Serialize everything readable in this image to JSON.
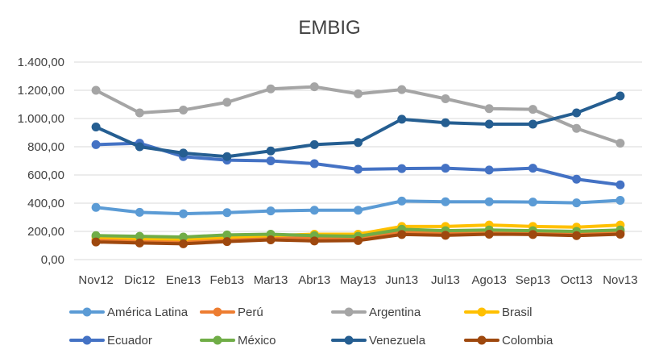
{
  "chart_data": {
    "type": "line",
    "title": "EMBIG",
    "xlabel": "",
    "ylabel": "",
    "ylim": [
      0,
      1400
    ],
    "yticks": [
      0,
      200,
      400,
      600,
      800,
      1000,
      1200,
      1400
    ],
    "ytick_labels": [
      "0,00",
      "200,00",
      "400,00",
      "600,00",
      "800,00",
      "1.000,00",
      "1.200,00",
      "1.400,00"
    ],
    "grid": true,
    "legend_position": "bottom",
    "categories": [
      "Nov12",
      "Dic12",
      "Ene13",
      "Feb13",
      "Mar13",
      "Abr13",
      "May13",
      "Jun13",
      "Jul13",
      "Ago13",
      "Sep13",
      "Oct13",
      "Nov13"
    ],
    "series": [
      {
        "name": "América Latina",
        "color": "#5b9bd5",
        "values": [
          370,
          335,
          325,
          333,
          345,
          350,
          350,
          415,
          410,
          410,
          408,
          402,
          420
        ]
      },
      {
        "name": "Perú",
        "color": "#ed7d31",
        "values": [
          140,
          130,
          125,
          140,
          150,
          155,
          150,
          200,
          190,
          200,
          190,
          185,
          195
        ]
      },
      {
        "name": "Argentina",
        "color": "#a5a5a5",
        "values": [
          1200,
          1040,
          1060,
          1115,
          1210,
          1225,
          1175,
          1205,
          1140,
          1070,
          1065,
          930,
          825
        ]
      },
      {
        "name": "Brasil",
        "color": "#ffc000",
        "values": [
          160,
          150,
          145,
          160,
          170,
          180,
          180,
          235,
          235,
          245,
          235,
          230,
          245
        ]
      },
      {
        "name": "Ecuador",
        "color": "#4472c4",
        "values": [
          815,
          825,
          730,
          705,
          700,
          680,
          640,
          645,
          648,
          635,
          648,
          570,
          530
        ]
      },
      {
        "name": "México",
        "color": "#70ad47",
        "values": [
          170,
          165,
          160,
          175,
          180,
          170,
          165,
          215,
          205,
          210,
          205,
          200,
          210
        ]
      },
      {
        "name": "Venezuela",
        "color": "#255e91",
        "values": [
          940,
          800,
          755,
          730,
          770,
          815,
          830,
          995,
          970,
          960,
          960,
          1040,
          1160
        ]
      },
      {
        "name": "Colombia",
        "color": "#9e480e",
        "values": [
          125,
          118,
          112,
          128,
          140,
          132,
          135,
          178,
          172,
          180,
          178,
          170,
          180
        ]
      }
    ]
  }
}
